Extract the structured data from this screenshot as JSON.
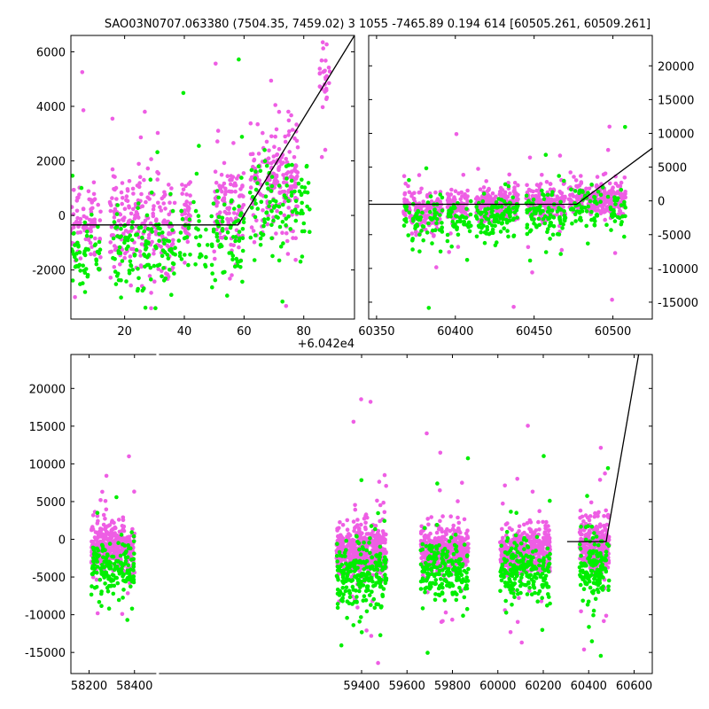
{
  "title": "SAO03N0707.063380 (7504.35, 7459.02)  3 1055 -7465.89 0.194 614 [60505.261, 60509.261]",
  "colors": {
    "series_a": "#ee5ee4",
    "series_b": "#00ee00",
    "model": "#000000"
  },
  "chart_data": [
    {
      "id": "top-left",
      "type": "scatter",
      "title": "",
      "xlim": [
        2,
        97
      ],
      "ylim": [
        -3800,
        6600
      ],
      "x_offset_label": "+6.042e4",
      "x_ticks": [
        20,
        40,
        60,
        80
      ],
      "y_ticks": [
        -2000,
        0,
        2000,
        4000,
        6000
      ],
      "y_axis_side": "left",
      "model_line": {
        "x": [
          2,
          58,
          97
        ],
        "y": [
          -350,
          -350,
          6600
        ]
      },
      "series": [
        {
          "color": "#ee5ee4",
          "clusters": [
            {
              "x": [
                2,
                12
              ],
              "y_center": -200,
              "y_spread": 1300,
              "count": 90
            },
            {
              "x": [
                15,
                37
              ],
              "y_center": -400,
              "y_spread": 1500,
              "count": 230
            },
            {
              "x": [
                39,
                42
              ],
              "y_center": 100,
              "y_spread": 1000,
              "count": 40
            },
            {
              "x": [
                50,
                60
              ],
              "y_center": 200,
              "y_spread": 1400,
              "count": 120
            },
            {
              "x": [
                62,
                78
              ],
              "y_center": 1200,
              "y_spread": 1700,
              "count": 210
            },
            {
              "x": [
                85,
                89
              ],
              "y_center": 5000,
              "y_spread": 900,
              "count": 30
            }
          ]
        },
        {
          "color": "#00ee00",
          "clusters": [
            {
              "x": [
                2,
                12
              ],
              "y_center": -1700,
              "y_spread": 1400,
              "count": 55
            },
            {
              "x": [
                16,
                37
              ],
              "y_center": -1200,
              "y_spread": 1500,
              "count": 130
            },
            {
              "x": [
                38,
                48
              ],
              "y_center": -1000,
              "y_spread": 1200,
              "count": 40
            },
            {
              "x": [
                49,
                60
              ],
              "y_center": -700,
              "y_spread": 1400,
              "count": 70
            },
            {
              "x": [
                62,
                82
              ],
              "y_center": 300,
              "y_spread": 1500,
              "count": 110
            }
          ]
        }
      ]
    },
    {
      "id": "top-right",
      "type": "scatter",
      "title": "",
      "xlim": [
        60345,
        60525
      ],
      "ylim": [
        -17500,
        24500
      ],
      "x_ticks": [
        60350,
        60400,
        60450,
        60500
      ],
      "y_ticks": [
        -15000,
        -10000,
        -5000,
        0,
        5000,
        10000,
        15000,
        20000
      ],
      "y_axis_side": "right",
      "model_line": {
        "x": [
          60345,
          60477,
          60525
        ],
        "y": [
          -500,
          -500,
          7800
        ]
      },
      "series": [
        {
          "color": "#ee5ee4",
          "clusters": [
            {
              "x": [
                60367,
                60392
              ],
              "y_center": -1200,
              "y_spread": 2500,
              "count": 150
            },
            {
              "x": [
                60395,
                60408
              ],
              "y_center": -800,
              "y_spread": 2000,
              "count": 80
            },
            {
              "x": [
                60413,
                60440
              ],
              "y_center": -500,
              "y_spread": 2100,
              "count": 200
            },
            {
              "x": [
                60445,
                60470
              ],
              "y_center": -500,
              "y_spread": 2000,
              "count": 180
            },
            {
              "x": [
                60472,
                60508
              ],
              "y_center": 300,
              "y_spread": 2200,
              "count": 240
            }
          ]
        },
        {
          "color": "#00ee00",
          "clusters": [
            {
              "x": [
                60367,
                60392
              ],
              "y_center": -3000,
              "y_spread": 2500,
              "count": 70
            },
            {
              "x": [
                60395,
                60410
              ],
              "y_center": -3000,
              "y_spread": 2500,
              "count": 45
            },
            {
              "x": [
                60413,
                60440
              ],
              "y_center": -2000,
              "y_spread": 2500,
              "count": 110
            },
            {
              "x": [
                60445,
                60470
              ],
              "y_center": -2000,
              "y_spread": 2500,
              "count": 95
            },
            {
              "x": [
                60472,
                60508
              ],
              "y_center": -1200,
              "y_spread": 2600,
              "count": 90
            }
          ]
        }
      ]
    },
    {
      "id": "bottom",
      "type": "scatter",
      "title": "",
      "xlim": [
        58120,
        60680
      ],
      "ylim": [
        -17800,
        24500
      ],
      "x_ticks": [
        58200,
        58400,
        59400,
        59600,
        59800,
        60000,
        60200,
        60400,
        60600
      ],
      "y_ticks": [
        -15000,
        -10000,
        -5000,
        0,
        5000,
        10000,
        15000,
        20000
      ],
      "y_axis_side": "left",
      "axis_break_x": 58500,
      "model_line": {
        "x": [
          60305,
          60477,
          60620
        ],
        "y": [
          -300,
          -300,
          24500
        ]
      },
      "series": [
        {
          "color": "#ee5ee4",
          "clusters": [
            {
              "x": [
                58210,
                58400
              ],
              "y_center": -1000,
              "y_spread": 2600,
              "count": 380
            },
            {
              "x": [
                59290,
                59510
              ],
              "y_center": -1600,
              "y_spread": 2600,
              "count": 480
            },
            {
              "x": [
                59660,
                59870
              ],
              "y_center": -1500,
              "y_spread": 2500,
              "count": 440
            },
            {
              "x": [
                60010,
                60230
              ],
              "y_center": -1500,
              "y_spread": 2500,
              "count": 440
            },
            {
              "x": [
                60360,
                60490
              ],
              "y_center": -1000,
              "y_spread": 2700,
              "count": 320
            }
          ]
        },
        {
          "color": "#00ee00",
          "clusters": [
            {
              "x": [
                58210,
                58400
              ],
              "y_center": -3800,
              "y_spread": 3000,
              "count": 170
            },
            {
              "x": [
                59290,
                59510
              ],
              "y_center": -4500,
              "y_spread": 3500,
              "count": 230
            },
            {
              "x": [
                59660,
                59870
              ],
              "y_center": -4200,
              "y_spread": 3200,
              "count": 200
            },
            {
              "x": [
                60010,
                60230
              ],
              "y_center": -4200,
              "y_spread": 3300,
              "count": 210
            },
            {
              "x": [
                60360,
                60490
              ],
              "y_center": -3800,
              "y_spread": 3400,
              "count": 150
            }
          ]
        }
      ]
    }
  ]
}
